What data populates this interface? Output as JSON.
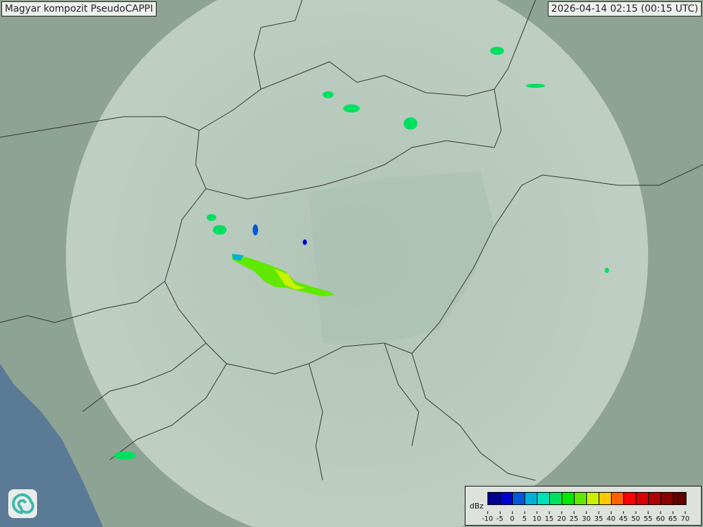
{
  "title": "Magyar kompozit  PseudoCAPPI",
  "timestamp": "2026-04-14 02:15 (00:15 UTC)",
  "legend": {
    "unit": "dBz",
    "colors": [
      "#00008f",
      "#0000d0",
      "#0058d8",
      "#00b0d8",
      "#00e0b8",
      "#00e060",
      "#00e800",
      "#60e800",
      "#c8f000",
      "#f8c800",
      "#ff6000",
      "#ff0000",
      "#d80000",
      "#b00000",
      "#880000",
      "#600000"
    ],
    "ticks": [
      "-10",
      "-5",
      "0",
      "5",
      "10",
      "15",
      "20",
      "25",
      "30",
      "35",
      "40",
      "45",
      "50",
      "55",
      "60",
      "65",
      "70"
    ]
  },
  "logo": {
    "icon": "swirl-logo-icon"
  },
  "colors": {
    "land": "#8fa595",
    "coverage": "#c8d8cc",
    "sea": "#5b7a95",
    "border": "#333333"
  }
}
